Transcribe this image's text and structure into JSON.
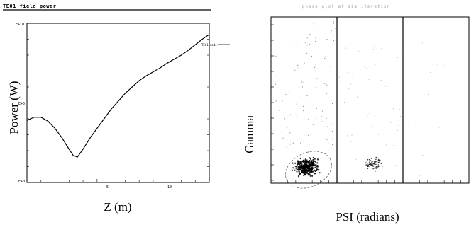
{
  "chart_data": [
    {
      "type": "line",
      "title": "TE01 field power",
      "xlabel": "Z (m)",
      "ylabel": "Power (W)",
      "legend": {
        "label": "TE01 mode",
        "placement": "top-right"
      },
      "x_ticks": [
        "5",
        "10"
      ],
      "y_ticks": [
        "E+10",
        "E+5",
        "E+0"
      ],
      "xlim": [
        0,
        13
      ],
      "ylim": [
        0,
        10
      ],
      "y_scale": "log",
      "grid": false,
      "series": [
        {
          "x": [
            0,
            0.5,
            1,
            1.5,
            2,
            2.5,
            3,
            3.3,
            3.6,
            4,
            4.5,
            5,
            5.5,
            6,
            6.5,
            7,
            7.5,
            8,
            8.5,
            9,
            9.5,
            10,
            10.5,
            11,
            11.5,
            12,
            12.5,
            13
          ],
          "y": [
            3.9,
            4.1,
            4.1,
            3.85,
            3.4,
            2.8,
            2.1,
            1.7,
            1.6,
            2.1,
            2.8,
            3.4,
            4.0,
            4.6,
            5.1,
            5.6,
            6.0,
            6.4,
            6.7,
            6.95,
            7.2,
            7.5,
            7.75,
            8.0,
            8.3,
            8.65,
            9.0,
            9.3
          ]
        }
      ]
    },
    {
      "type": "scatter",
      "title": "phase plot at sim iteration",
      "xlabel": "PSI  (radians)",
      "ylabel": "Gamma",
      "panels": 3,
      "grid": false
    }
  ]
}
